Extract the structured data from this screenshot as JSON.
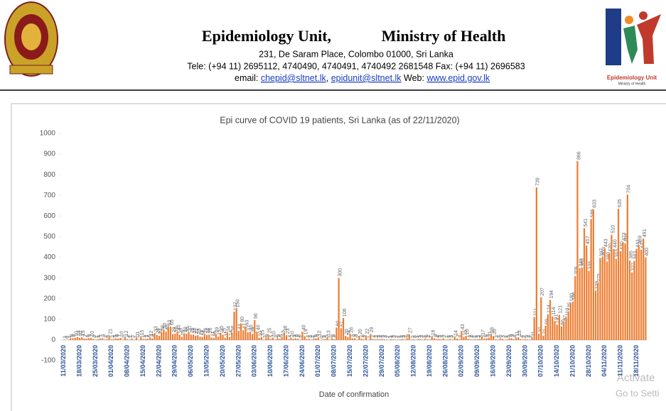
{
  "header": {
    "title_left": "Epidemiology Unit,",
    "title_right": "Ministry of Health",
    "address": "231, De Saram Place, Colombo 01000, Sri Lanka",
    "phone": "Tele: (+94 11) 2695112, 4740490, 4740491, 4740492 2681548  Fax: (+94 11) 2696583",
    "email_label": "email:",
    "emails": [
      "chepid@sltnet.lk",
      "epidunit@sltnet.lk"
    ],
    "web_label": "Web:",
    "web": "www.epid.gov.lk",
    "logo_text": "Epidemiology Unit",
    "logo_subtext": "Ministry of Health"
  },
  "watermark": [
    "Activate",
    "Go to Setti"
  ],
  "chart_data": {
    "type": "bar",
    "title": "Epi curve of COVID 19 patients, Sri Lanka  (as of 22/11/2020)",
    "x_label": "Date of confirmation",
    "color": "#ED7D31",
    "ylim": [
      -100,
      1000
    ],
    "yticks": [
      -100,
      0,
      100,
      200,
      300,
      400,
      500,
      600,
      700,
      800,
      900,
      1000
    ],
    "categories": [
      "11/03/2020",
      null,
      null,
      null,
      null,
      null,
      null,
      "18/03/2020",
      null,
      null,
      null,
      null,
      null,
      null,
      "25/03/2020",
      null,
      null,
      null,
      null,
      null,
      null,
      "01/04/2020",
      null,
      null,
      null,
      null,
      null,
      null,
      "08/04/2020",
      null,
      null,
      null,
      null,
      null,
      null,
      "15/04/2020",
      null,
      null,
      null,
      null,
      null,
      null,
      "22/04/2020",
      null,
      null,
      null,
      null,
      null,
      null,
      "29/04/2020",
      null,
      null,
      null,
      null,
      null,
      null,
      "06/05/2020",
      null,
      null,
      null,
      null,
      null,
      null,
      "13/05/2020",
      null,
      null,
      null,
      null,
      null,
      null,
      "20/05/2020",
      null,
      null,
      null,
      null,
      null,
      null,
      "27/05/2020",
      null,
      null,
      null,
      null,
      null,
      null,
      "03/06/2020",
      null,
      null,
      null,
      null,
      null,
      null,
      "10/06/2020",
      null,
      null,
      null,
      null,
      null,
      null,
      "17/06/2020",
      null,
      null,
      null,
      null,
      null,
      null,
      "24/06/2020",
      null,
      null,
      null,
      null,
      null,
      null,
      "01/07/2020",
      null,
      null,
      null,
      null,
      null,
      null,
      "08/07/2020",
      null,
      null,
      null,
      null,
      null,
      null,
      "15/07/2020",
      null,
      null,
      null,
      null,
      null,
      null,
      "22/07/2020",
      null,
      null,
      null,
      null,
      null,
      null,
      "29/07/2020",
      null,
      null,
      null,
      null,
      null,
      null,
      "05/08/2020",
      null,
      null,
      null,
      null,
      null,
      null,
      "12/08/2020",
      null,
      null,
      null,
      null,
      null,
      null,
      "19/08/2020",
      null,
      null,
      null,
      null,
      null,
      null,
      "26/08/2020",
      null,
      null,
      null,
      null,
      null,
      null,
      "02/09/2020",
      null,
      null,
      null,
      null,
      null,
      null,
      "09/09/2020",
      null,
      null,
      null,
      null,
      null,
      null,
      "16/09/2020",
      null,
      null,
      null,
      null,
      null,
      null,
      "23/09/2020",
      null,
      null,
      null,
      null,
      null,
      null,
      "30/09/2020",
      null,
      null,
      null,
      null,
      null,
      null,
      "07/10/2020",
      null,
      null,
      null,
      null,
      null,
      null,
      "14/10/2020",
      null,
      null,
      null,
      null,
      null,
      null,
      "21/10/2020",
      null,
      null,
      null,
      null,
      null,
      null,
      "28/10/2020",
      null,
      null,
      null,
      null,
      null,
      null,
      "04/11/2020",
      null,
      null,
      null,
      null,
      null,
      null,
      "11/11/2020",
      null,
      null,
      null,
      null,
      null,
      null,
      "18/11/2020",
      null,
      null,
      null,
      null
    ],
    "values": [
      1,
      0,
      1,
      8,
      8,
      10,
      14,
      10,
      13,
      7,
      6,
      9,
      10,
      5,
      1,
      4,
      7,
      9,
      2,
      5,
      21,
      3,
      5,
      8,
      7,
      10,
      2,
      12,
      4,
      1,
      7,
      1,
      11,
      2,
      15,
      5,
      5,
      6,
      12,
      8,
      33,
      24,
      20,
      38,
      50,
      40,
      63,
      65,
      29,
      30,
      40,
      25,
      15,
      30,
      30,
      37,
      26,
      26,
      21,
      23,
      16,
      14,
      26,
      24,
      26,
      11,
      10,
      29,
      17,
      35,
      25,
      11,
      34,
      14,
      36,
      137,
      150,
      44,
      80,
      47,
      63,
      37,
      40,
      29,
      96,
      40,
      10,
      15,
      2,
      9,
      25,
      5,
      10,
      2,
      8,
      6,
      13,
      36,
      23,
      4,
      10,
      5,
      8,
      6,
      2,
      40,
      19,
      4,
      5,
      2,
      6,
      8,
      12,
      0,
      3,
      5,
      13,
      2,
      8,
      4,
      60,
      300,
      57,
      106,
      20,
      14,
      28,
      8,
      9,
      2,
      20,
      6,
      3,
      22,
      1,
      29,
      4,
      3,
      5,
      3,
      5,
      3,
      2,
      1,
      4,
      3,
      2,
      2,
      3,
      5,
      2,
      8,
      27,
      2,
      3,
      1,
      5,
      3,
      2,
      6,
      3,
      2,
      16,
      8,
      4,
      5,
      3,
      7,
      2,
      3,
      5,
      2,
      14,
      7,
      3,
      43,
      15,
      20,
      5,
      3,
      2,
      4,
      3,
      5,
      17,
      6,
      8,
      11,
      28,
      20,
      3,
      2,
      7,
      5,
      1,
      3,
      8,
      9,
      4,
      11,
      13,
      4,
      2,
      5,
      3,
      2,
      11,
      111,
      739,
      30,
      207,
      21,
      69,
      124,
      194,
      114,
      91,
      74,
      121,
      66,
      87,
      110,
      135,
      180,
      186,
      309,
      866,
      348,
      351,
      541,
      457,
      335,
      586,
      633,
      239,
      275,
      397,
      403,
      443,
      380,
      420,
      510,
      440,
      393,
      635,
      430,
      473,
      468,
      704,
      385,
      327,
      383,
      441,
      459,
      437,
      491,
      400
    ]
  }
}
